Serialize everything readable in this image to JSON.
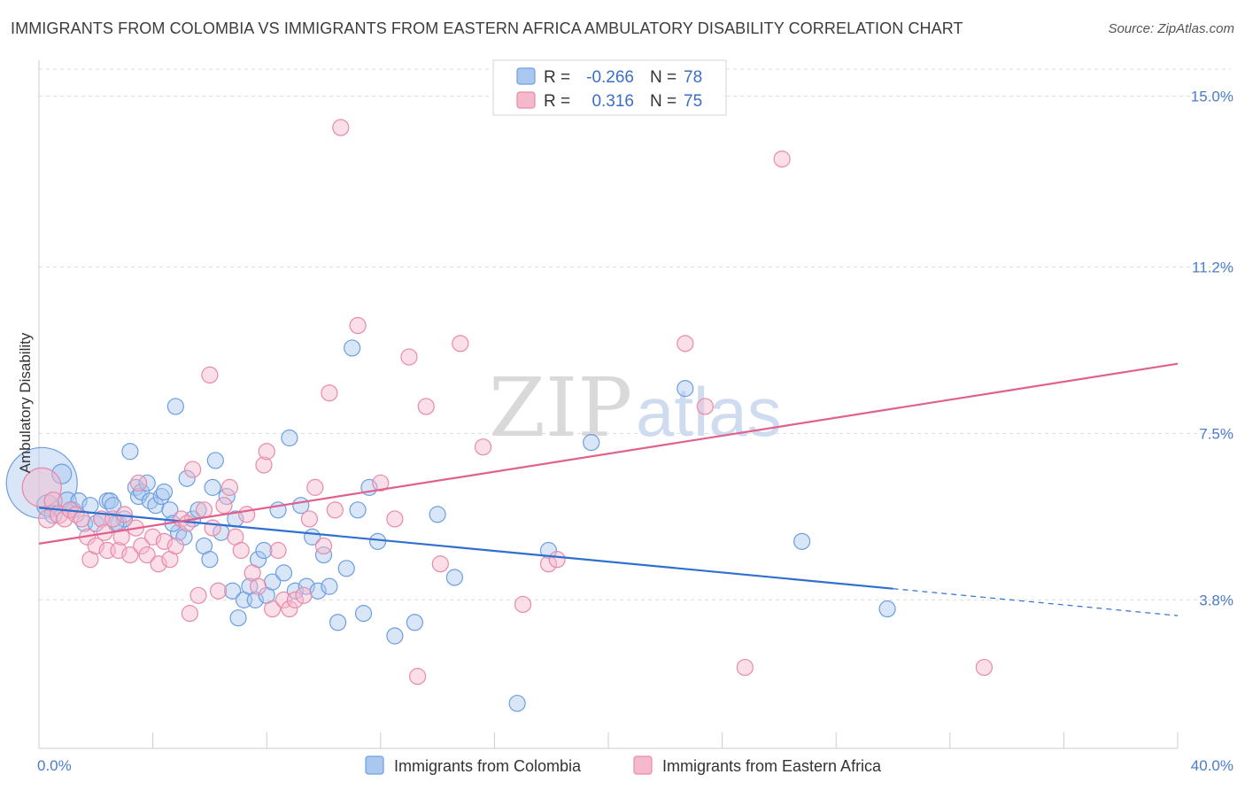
{
  "header": {
    "title": "IMMIGRANTS FROM COLOMBIA VS IMMIGRANTS FROM EASTERN AFRICA AMBULATORY DISABILITY CORRELATION CHART",
    "source": "Source: ZipAtlas.com"
  },
  "watermark": {
    "zip": "ZIP",
    "atlas": "atlas"
  },
  "colors": {
    "blue_fill": "#a9c7ef",
    "blue_stroke": "#6d9ee0",
    "blue_line": "#2f6fd0",
    "pink_fill": "#f6b9cb",
    "pink_stroke": "#e88aa8",
    "pink_line": "#e0608e",
    "grid": "#dddddd",
    "tick_text": "#4a7ccc"
  },
  "legend": {
    "rows": [
      {
        "r_label": "R =",
        "r_value": "-0.266",
        "n_label": "N =",
        "n_value": "78"
      },
      {
        "r_label": "R =",
        "r_value": "0.316",
        "n_label": "N =",
        "n_value": "75"
      }
    ]
  },
  "chart_data": {
    "type": "scatter",
    "title": "IMMIGRANTS FROM COLOMBIA VS IMMIGRANTS FROM EASTERN AFRICA AMBULATORY DISABILITY CORRELATION CHART",
    "xlabel": "",
    "ylabel": "Ambulatory Disability",
    "xlim": [
      0,
      40
    ],
    "ylim": [
      0.5,
      15.6
    ],
    "x_tick_labels": [
      {
        "value": 0,
        "label": "0.0%"
      },
      {
        "value": 40,
        "label": "40.0%"
      }
    ],
    "y_tick_labels": [
      {
        "value": 3.8,
        "label": "3.8%"
      },
      {
        "value": 7.5,
        "label": "7.5%"
      },
      {
        "value": 11.2,
        "label": "11.2%"
      },
      {
        "value": 15.0,
        "label": "15.0%"
      }
    ],
    "x_minor_ticks": [
      0,
      4,
      8,
      12,
      16,
      20,
      24,
      28,
      32,
      36,
      40
    ],
    "grid": true,
    "series": [
      {
        "name": "Immigrants from Colombia",
        "color": "blue",
        "r": -0.266,
        "n": 78,
        "trend": {
          "x0": 0,
          "y0": 5.85,
          "x1": 30,
          "y1": 4.05,
          "dash_to_x": 40,
          "dash_to_y": 3.45
        },
        "points": [
          [
            0.1,
            6.4,
            40
          ],
          [
            0.3,
            5.9,
            12
          ],
          [
            0.5,
            5.7,
            10
          ],
          [
            0.8,
            6.6,
            11
          ],
          [
            1.0,
            6.0,
            10
          ],
          [
            1.2,
            5.8,
            9
          ],
          [
            1.4,
            6.0,
            9
          ],
          [
            1.6,
            5.5,
            9
          ],
          [
            1.8,
            5.9,
            9
          ],
          [
            2.0,
            5.5,
            9
          ],
          [
            2.2,
            5.6,
            9
          ],
          [
            2.4,
            6.0,
            9
          ],
          [
            2.5,
            6.0,
            9
          ],
          [
            2.6,
            5.9,
            9
          ],
          [
            2.8,
            5.5,
            9
          ],
          [
            3.0,
            5.6,
            9
          ],
          [
            3.2,
            7.1,
            9
          ],
          [
            3.4,
            6.3,
            9
          ],
          [
            3.5,
            6.1,
            9
          ],
          [
            3.6,
            6.2,
            9
          ],
          [
            3.8,
            6.4,
            9
          ],
          [
            3.9,
            6.0,
            9
          ],
          [
            4.1,
            5.9,
            9
          ],
          [
            4.3,
            6.1,
            9
          ],
          [
            4.4,
            6.2,
            9
          ],
          [
            4.6,
            5.8,
            9
          ],
          [
            4.8,
            8.1,
            9
          ],
          [
            4.9,
            5.3,
            9
          ],
          [
            5.1,
            5.2,
            9
          ],
          [
            5.2,
            6.5,
            9
          ],
          [
            5.4,
            5.6,
            9
          ],
          [
            5.6,
            5.8,
            9
          ],
          [
            5.8,
            5.0,
            9
          ],
          [
            6.0,
            4.7,
            9
          ],
          [
            6.1,
            6.3,
            9
          ],
          [
            6.2,
            6.9,
            9
          ],
          [
            6.4,
            5.3,
            9
          ],
          [
            6.6,
            6.1,
            9
          ],
          [
            6.8,
            4.0,
            9
          ],
          [
            6.9,
            5.6,
            9
          ],
          [
            7.0,
            3.4,
            9
          ],
          [
            7.2,
            3.8,
            9
          ],
          [
            7.4,
            4.1,
            9
          ],
          [
            7.6,
            3.8,
            9
          ],
          [
            7.7,
            4.7,
            9
          ],
          [
            7.9,
            4.9,
            9
          ],
          [
            8.0,
            3.9,
            9
          ],
          [
            8.2,
            4.2,
            9
          ],
          [
            8.4,
            5.8,
            9
          ],
          [
            8.6,
            4.4,
            9
          ],
          [
            8.8,
            7.4,
            9
          ],
          [
            9.0,
            4.0,
            9
          ],
          [
            9.2,
            5.9,
            9
          ],
          [
            9.4,
            4.1,
            9
          ],
          [
            9.6,
            5.2,
            9
          ],
          [
            9.8,
            4.0,
            9
          ],
          [
            10.0,
            4.8,
            9
          ],
          [
            10.2,
            4.1,
            9
          ],
          [
            10.5,
            3.3,
            9
          ],
          [
            10.8,
            4.5,
            9
          ],
          [
            11.0,
            9.4,
            9
          ],
          [
            11.2,
            5.8,
            9
          ],
          [
            11.4,
            3.5,
            9
          ],
          [
            11.6,
            6.3,
            9
          ],
          [
            11.9,
            5.1,
            9
          ],
          [
            12.5,
            3.0,
            9
          ],
          [
            13.2,
            3.3,
            9
          ],
          [
            14.0,
            5.7,
            9
          ],
          [
            14.6,
            4.3,
            9
          ],
          [
            16.8,
            1.5,
            9
          ],
          [
            17.9,
            4.9,
            9
          ],
          [
            19.4,
            7.3,
            9
          ],
          [
            22.7,
            8.5,
            9
          ],
          [
            26.8,
            5.1,
            9
          ],
          [
            29.8,
            3.6,
            9
          ],
          [
            1.1,
            5.8,
            9
          ],
          [
            2.7,
            5.5,
            9
          ],
          [
            4.7,
            5.5,
            9
          ]
        ]
      },
      {
        "name": "Immigrants from Eastern Africa",
        "color": "pink",
        "r": 0.316,
        "n": 75,
        "trend": {
          "x0": 0,
          "y0": 5.05,
          "x1": 40,
          "y1": 9.05
        },
        "points": [
          [
            0.1,
            6.3,
            22
          ],
          [
            0.3,
            5.6,
            10
          ],
          [
            0.5,
            6.0,
            10
          ],
          [
            0.7,
            5.7,
            10
          ],
          [
            0.9,
            5.6,
            9
          ],
          [
            1.1,
            5.8,
            9
          ],
          [
            1.3,
            5.7,
            9
          ],
          [
            1.5,
            5.6,
            9
          ],
          [
            1.7,
            5.2,
            9
          ],
          [
            1.8,
            4.7,
            9
          ],
          [
            2.0,
            5.0,
            9
          ],
          [
            2.2,
            5.6,
            9
          ],
          [
            2.3,
            5.3,
            9
          ],
          [
            2.4,
            4.9,
            9
          ],
          [
            2.6,
            5.6,
            9
          ],
          [
            2.8,
            4.9,
            9
          ],
          [
            2.9,
            5.2,
            9
          ],
          [
            3.0,
            5.7,
            9
          ],
          [
            3.2,
            4.8,
            9
          ],
          [
            3.4,
            5.4,
            9
          ],
          [
            3.5,
            6.4,
            9
          ],
          [
            3.6,
            5.0,
            9
          ],
          [
            3.8,
            4.8,
            9
          ],
          [
            4.0,
            5.2,
            9
          ],
          [
            4.2,
            4.6,
            9
          ],
          [
            4.4,
            5.1,
            9
          ],
          [
            4.6,
            4.7,
            9
          ],
          [
            4.8,
            5.0,
            9
          ],
          [
            5.0,
            5.6,
            9
          ],
          [
            5.2,
            5.5,
            9
          ],
          [
            5.3,
            3.5,
            9
          ],
          [
            5.4,
            6.7,
            9
          ],
          [
            5.6,
            3.9,
            9
          ],
          [
            5.8,
            5.8,
            9
          ],
          [
            6.0,
            8.8,
            9
          ],
          [
            6.1,
            5.4,
            9
          ],
          [
            6.3,
            4.0,
            9
          ],
          [
            6.5,
            5.9,
            9
          ],
          [
            6.7,
            6.3,
            9
          ],
          [
            6.9,
            5.2,
            9
          ],
          [
            7.1,
            4.9,
            9
          ],
          [
            7.3,
            5.7,
            9
          ],
          [
            7.5,
            4.4,
            9
          ],
          [
            7.7,
            4.1,
            9
          ],
          [
            7.9,
            6.8,
            9
          ],
          [
            8.0,
            7.1,
            9
          ],
          [
            8.2,
            3.6,
            9
          ],
          [
            8.4,
            4.9,
            9
          ],
          [
            8.6,
            3.8,
            9
          ],
          [
            8.8,
            3.6,
            9
          ],
          [
            9.0,
            3.8,
            9
          ],
          [
            9.3,
            3.9,
            9
          ],
          [
            9.5,
            5.6,
            9
          ],
          [
            9.7,
            6.3,
            9
          ],
          [
            10.0,
            5.0,
            9
          ],
          [
            10.2,
            8.4,
            9
          ],
          [
            10.4,
            5.8,
            9
          ],
          [
            10.6,
            14.3,
            9
          ],
          [
            11.2,
            9.9,
            9
          ],
          [
            12.0,
            6.4,
            9
          ],
          [
            12.5,
            5.6,
            9
          ],
          [
            13.0,
            9.2,
            9
          ],
          [
            13.3,
            2.1,
            9
          ],
          [
            13.6,
            8.1,
            9
          ],
          [
            14.1,
            4.6,
            9
          ],
          [
            14.8,
            9.5,
            9
          ],
          [
            15.6,
            7.2,
            9
          ],
          [
            17.0,
            3.7,
            9
          ],
          [
            17.9,
            4.6,
            9
          ],
          [
            18.2,
            4.7,
            9
          ],
          [
            22.7,
            9.5,
            9
          ],
          [
            23.4,
            8.1,
            9
          ],
          [
            24.8,
            2.3,
            9
          ],
          [
            26.1,
            13.6,
            9
          ],
          [
            33.2,
            2.3,
            9
          ]
        ]
      }
    ]
  },
  "bottom_legend": {
    "items": [
      {
        "label": "Immigrants from Colombia"
      },
      {
        "label": "Immigrants from Eastern Africa"
      }
    ]
  }
}
